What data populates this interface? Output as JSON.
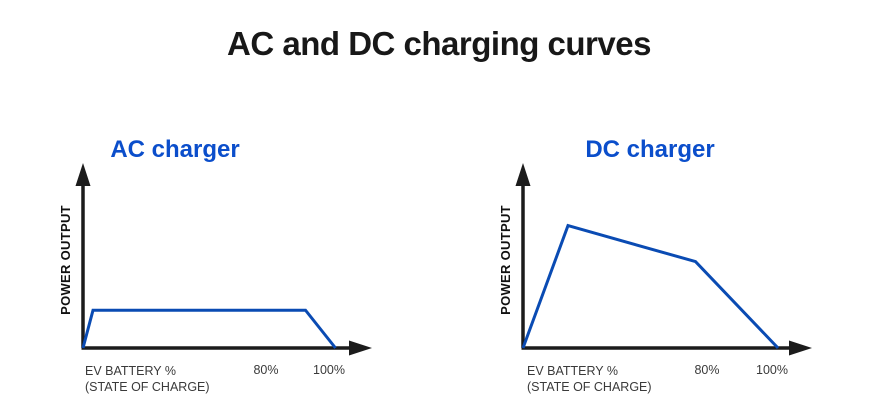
{
  "page": {
    "title": "AC and DC charging curves"
  },
  "colors": {
    "title_text": "#181818",
    "chart_title_blue": "#0b4ecb",
    "curve_blue": "#0a4bb3",
    "axis_black": "#1c1c1c",
    "label_gray": "#3a3a3a",
    "page_bg": "#ffffff"
  },
  "chart_data": [
    {
      "type": "line",
      "title": "AC charger",
      "ylabel": "POWER OUTPUT",
      "xlabel_line1": "EV BATTERY %",
      "xlabel_line2": "(STATE OF CHARGE)",
      "x_range": [
        0,
        100
      ],
      "x_ticks": [
        {
          "label": "80%",
          "x": 211
        },
        {
          "label": "100%",
          "x": 274
        }
      ],
      "points": [
        {
          "soc": 0,
          "power": 0
        },
        {
          "soc": 4,
          "power": 21
        },
        {
          "soc": 89,
          "power": 21
        },
        {
          "soc": 101,
          "power": 0
        }
      ]
    },
    {
      "type": "line",
      "title": "DC charger",
      "ylabel": "POWER OUTPUT",
      "xlabel_line1": "EV BATTERY %",
      "xlabel_line2": "(STATE OF CHARGE)",
      "x_range": [
        0,
        100
      ],
      "x_ticks": [
        {
          "label": "80%",
          "x": 212
        },
        {
          "label": "100%",
          "x": 277
        }
      ],
      "points": [
        {
          "soc": 0,
          "power": 0
        },
        {
          "soc": 18,
          "power": 68
        },
        {
          "soc": 69,
          "power": 48
        },
        {
          "soc": 102,
          "power": 0
        }
      ]
    }
  ]
}
